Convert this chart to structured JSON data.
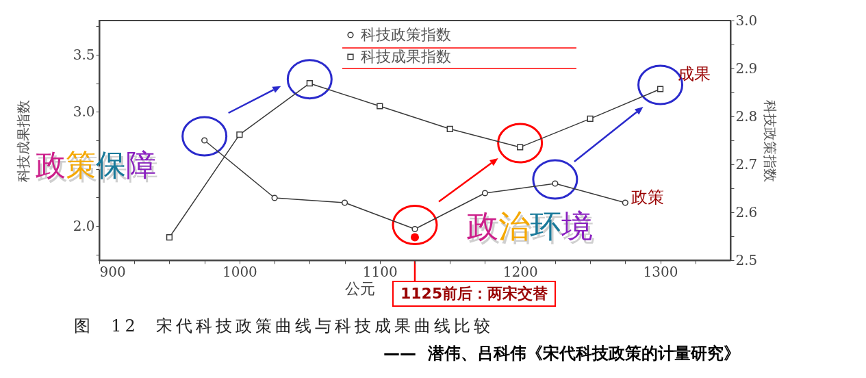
{
  "chart_data": {
    "type": "line",
    "xlabel": "公元",
    "ylabel": "科技成果指数",
    "y2label": "科技政策指数",
    "xlim": [
      900,
      1350
    ],
    "xticks": [
      900,
      {
        "value": 925,
        "label": null
      },
      {
        "value": 950,
        "label": null
      },
      {
        "value": 975,
        "label": null
      },
      1000,
      {
        "value": 1025,
        "label": null
      },
      {
        "value": 1050,
        "label": null
      },
      {
        "value": 1075,
        "label": null
      },
      1100,
      {
        "value": 1125,
        "label": null
      },
      {
        "value": 1150,
        "label": null
      },
      {
        "value": 1175,
        "label": null
      },
      1200,
      {
        "value": 1225,
        "label": null
      },
      {
        "value": 1250,
        "label": null
      },
      {
        "value": 1275,
        "label": null
      },
      1300,
      {
        "value": 1325,
        "label": null
      }
    ],
    "ylim": [
      1.7,
      3.8
    ],
    "yticks": [
      {
        "value": 1.75,
        "label": null
      },
      {
        "value": 2,
        "label": "2.0"
      },
      {
        "value": 2.25,
        "label": null
      },
      {
        "value": 2.5,
        "label": null
      },
      {
        "value": 2.75,
        "label": null
      },
      {
        "value": 3,
        "label": "3.0"
      },
      {
        "value": 3.25,
        "label": null
      },
      3.5,
      {
        "value": 3.75,
        "label": null
      }
    ],
    "y2lim": [
      2.5,
      3.0
    ],
    "y2ticks": [
      2.5,
      {
        "value": 2.55,
        "label": null
      },
      2.6,
      {
        "value": 2.65,
        "label": null
      },
      2.7,
      {
        "value": 2.75,
        "label": null
      },
      2.8,
      {
        "value": 2.85,
        "label": null
      },
      2.9,
      {
        "value": 2.95,
        "label": null
      },
      {
        "value": 3,
        "label": "3.0"
      }
    ],
    "grid": false,
    "legend": "top",
    "series": [
      {
        "name": "科技政策指数",
        "color": "#3a3a3a",
        "axis": "y2",
        "marker": "circle",
        "x": [
          975,
          1025,
          1075,
          1125,
          1175,
          1225,
          1275
        ],
        "values": [
          2.75,
          2.63,
          2.62,
          2.565,
          2.64,
          2.66,
          2.62
        ]
      },
      {
        "name": "科技成果指数",
        "color": "#3a3a3a",
        "marker": "square",
        "x": [
          950,
          1000,
          1050,
          1100,
          1150,
          1200,
          1250,
          1300
        ],
        "values": [
          1.9,
          2.8,
          3.25,
          3.05,
          2.85,
          2.69,
          2.94,
          3.2
        ]
      }
    ],
    "annotations": [
      "政策保障",
      "政治环境",
      "成果",
      "政策",
      "1125前后：两宋交替",
      "图  12  宋代科技政策曲线与科技成果曲线比较",
      "——  潜伟、吕科伟《宋代科技政策的计量研究》"
    ]
  }
}
